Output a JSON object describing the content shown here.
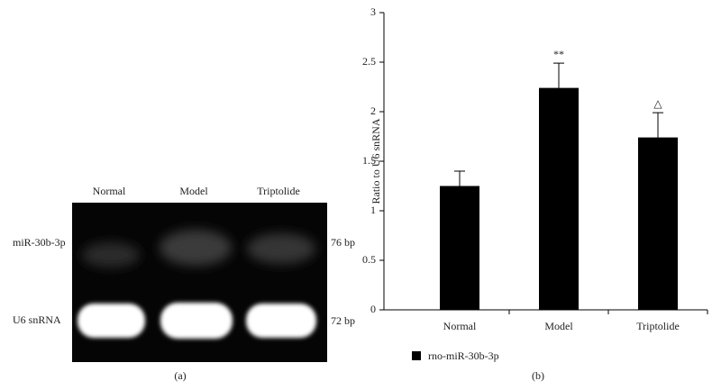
{
  "gel": {
    "lanes": [
      "Normal",
      "Model",
      "Triptolide"
    ],
    "rows": [
      {
        "label": "miR-30b-3p",
        "size": "76 bp"
      },
      {
        "label": "U6 snRNA",
        "size": "72 bp"
      }
    ],
    "panel_label": "(a)"
  },
  "chart_data": {
    "type": "bar",
    "ylabel": "Ratio to U6 snRNA",
    "categories": [
      "Normal",
      "Model",
      "Triptolide"
    ],
    "values": [
      1.25,
      2.24,
      1.74
    ],
    "errors": [
      0.15,
      0.25,
      0.25
    ],
    "annotations": [
      null,
      "**",
      "△"
    ],
    "series_name": "rno-miR-30b-3p",
    "color": "#000000",
    "ylim": [
      0,
      3
    ],
    "yticks": [
      0,
      0.5,
      1,
      1.5,
      2,
      2.5,
      3
    ],
    "grid": false,
    "panel_label": "(b)"
  }
}
